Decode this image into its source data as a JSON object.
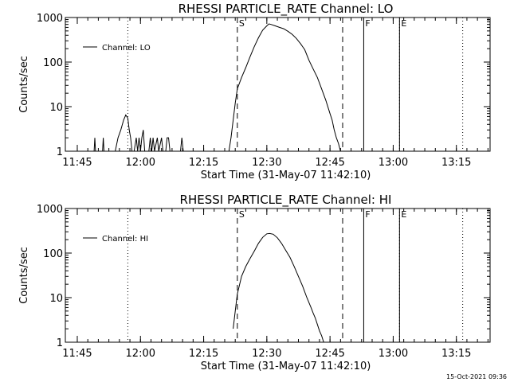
{
  "colors": {
    "background": "#ffffff",
    "foreground": "#000000"
  },
  "timestamp": "15-Oct-2021 09:36",
  "chart_data": [
    {
      "type": "line",
      "title": "RHESSI PARTICLE_RATE Channel: LO",
      "xlabel": "Start Time (31-May-07 11:42:10)",
      "ylabel": "Counts/sec",
      "yscale": "log",
      "xlim": [
        "11:42:10",
        "13:23:00"
      ],
      "ylim": [
        1,
        1000
      ],
      "x_ticks": [
        "11:45",
        "12:00",
        "12:15",
        "12:30",
        "12:45",
        "13:00",
        "13:15"
      ],
      "y_ticks": [
        "1",
        "10",
        "100",
        "1000"
      ],
      "legend": {
        "position": "top-left",
        "entries": [
          "Channel: LO"
        ]
      },
      "markers": [
        {
          "label": "S",
          "x": "12:23:00",
          "style": "dashed"
        },
        {
          "label": "",
          "x": "12:48:00",
          "style": "dashed"
        },
        {
          "label": "F",
          "x": "12:53:00",
          "style": "solid"
        },
        {
          "label": "E",
          "x": "13:01:30",
          "style": "solid"
        },
        {
          "label": "",
          "x": "11:57:00",
          "style": "dotted"
        },
        {
          "label": "",
          "x": "13:01:30",
          "style": "dotted"
        },
        {
          "label": "",
          "x": "13:16:30",
          "style": "dotted"
        }
      ],
      "series": [
        {
          "name": "Channel: LO",
          "points": [
            [
              "11:49:00",
              1
            ],
            [
              "11:49:10",
              2
            ],
            [
              "11:49:20",
              1
            ],
            [
              "11:51:00",
              1
            ],
            [
              "11:51:10",
              2
            ],
            [
              "11:51:20",
              1
            ],
            [
              "11:54:00",
              1
            ],
            [
              "11:54:40",
              2
            ],
            [
              "11:55:20",
              3
            ],
            [
              "11:56:00",
              5
            ],
            [
              "11:56:30",
              6.5
            ],
            [
              "11:57:00",
              5.5
            ],
            [
              "11:57:20",
              3
            ],
            [
              "11:57:40",
              2
            ],
            [
              "11:58:00",
              1
            ],
            [
              "11:58:30",
              1
            ],
            [
              "11:59:00",
              2
            ],
            [
              "11:59:20",
              1
            ],
            [
              "11:59:40",
              2
            ],
            [
              "12:00:00",
              1
            ],
            [
              "12:00:20",
              2
            ],
            [
              "12:00:40",
              3
            ],
            [
              "12:01:00",
              1
            ],
            [
              "12:02:00",
              1
            ],
            [
              "12:02:20",
              2
            ],
            [
              "12:02:40",
              1
            ],
            [
              "12:03:00",
              2
            ],
            [
              "12:03:20",
              1
            ],
            [
              "12:04:00",
              2
            ],
            [
              "12:04:20",
              1
            ],
            [
              "12:05:00",
              2
            ],
            [
              "12:05:20",
              1
            ],
            [
              "12:06:00",
              1
            ],
            [
              "12:06:20",
              2
            ],
            [
              "12:06:40",
              2
            ],
            [
              "12:07:00",
              1
            ],
            [
              "12:09:30",
              1
            ],
            [
              "12:09:50",
              2
            ],
            [
              "12:10:10",
              1
            ],
            [
              "12:21:00",
              1
            ],
            [
              "12:21:30",
              2
            ],
            [
              "12:22:00",
              5
            ],
            [
              "12:22:30",
              12
            ],
            [
              "12:23:00",
              25
            ],
            [
              "12:24:00",
              45
            ],
            [
              "12:25:00",
              75
            ],
            [
              "12:26:00",
              130
            ],
            [
              "12:27:00",
              220
            ],
            [
              "12:28:00",
              350
            ],
            [
              "12:29:00",
              520
            ],
            [
              "12:30:00",
              650
            ],
            [
              "12:30:30",
              720
            ],
            [
              "12:31:00",
              700
            ],
            [
              "12:32:00",
              650
            ],
            [
              "12:33:00",
              600
            ],
            [
              "12:34:00",
              560
            ],
            [
              "12:35:00",
              490
            ],
            [
              "12:36:00",
              420
            ],
            [
              "12:37:00",
              340
            ],
            [
              "12:38:00",
              260
            ],
            [
              "12:39:00",
              190
            ],
            [
              "12:40:00",
              110
            ],
            [
              "12:41:00",
              70
            ],
            [
              "12:42:00",
              45
            ],
            [
              "12:43:00",
              25
            ],
            [
              "12:44:00",
              14
            ],
            [
              "12:45:00",
              7
            ],
            [
              "12:45:30",
              5
            ],
            [
              "12:46:00",
              3
            ],
            [
              "12:46:30",
              2
            ],
            [
              "12:47:00",
              1.5
            ],
            [
              "12:47:30",
              1
            ]
          ]
        }
      ]
    },
    {
      "type": "line",
      "title": "RHESSI PARTICLE_RATE Channel: HI",
      "xlabel": "Start Time (31-May-07 11:42:10)",
      "ylabel": "Counts/sec",
      "yscale": "log",
      "xlim": [
        "11:42:10",
        "13:23:00"
      ],
      "ylim": [
        1,
        1000
      ],
      "x_ticks": [
        "11:45",
        "12:00",
        "12:15",
        "12:30",
        "12:45",
        "13:00",
        "13:15"
      ],
      "y_ticks": [
        "1",
        "10",
        "100",
        "1000"
      ],
      "legend": {
        "position": "top-left",
        "entries": [
          "Channel: HI"
        ]
      },
      "markers": [
        {
          "label": "S",
          "x": "12:23:00",
          "style": "dashed"
        },
        {
          "label": "",
          "x": "12:48:00",
          "style": "dashed"
        },
        {
          "label": "F",
          "x": "12:53:00",
          "style": "solid"
        },
        {
          "label": "E",
          "x": "13:01:30",
          "style": "solid"
        },
        {
          "label": "",
          "x": "11:57:00",
          "style": "dotted"
        },
        {
          "label": "",
          "x": "13:01:30",
          "style": "dotted"
        },
        {
          "label": "",
          "x": "13:16:30",
          "style": "dotted"
        }
      ],
      "series": [
        {
          "name": "Channel: HI",
          "points": [
            [
              "12:22:00",
              2
            ],
            [
              "12:22:30",
              5
            ],
            [
              "12:23:00",
              12
            ],
            [
              "12:24:00",
              30
            ],
            [
              "12:25:00",
              50
            ],
            [
              "12:26:00",
              75
            ],
            [
              "12:27:00",
              110
            ],
            [
              "12:28:00",
              165
            ],
            [
              "12:29:00",
              225
            ],
            [
              "12:30:00",
              270
            ],
            [
              "12:30:40",
              275
            ],
            [
              "12:31:30",
              265
            ],
            [
              "12:32:30",
              220
            ],
            [
              "12:33:30",
              165
            ],
            [
              "12:34:30",
              115
            ],
            [
              "12:35:30",
              80
            ],
            [
              "12:36:30",
              50
            ],
            [
              "12:37:30",
              30
            ],
            [
              "12:38:30",
              18
            ],
            [
              "12:39:30",
              10
            ],
            [
              "12:40:30",
              6
            ],
            [
              "12:41:00",
              4.5
            ],
            [
              "12:41:30",
              3.5
            ],
            [
              "12:42:00",
              2.5
            ],
            [
              "12:42:30",
              1.8
            ],
            [
              "12:43:00",
              1.4
            ],
            [
              "12:43:30",
              1
            ]
          ]
        }
      ]
    }
  ]
}
